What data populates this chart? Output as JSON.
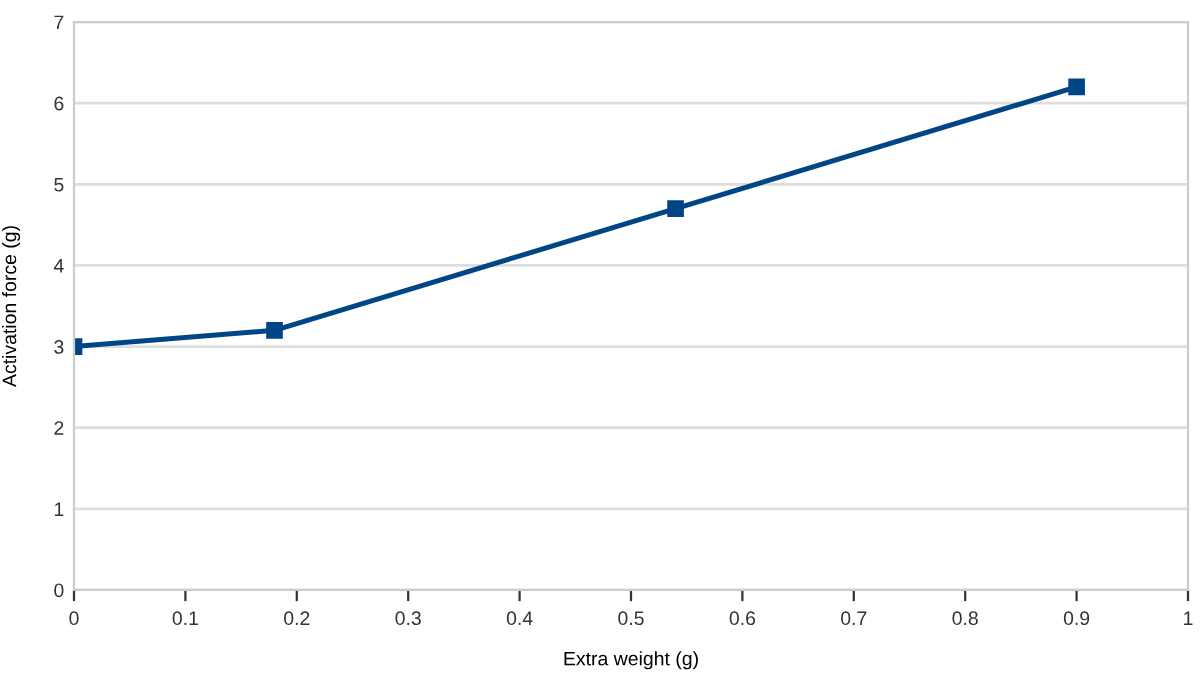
{
  "chart_data": {
    "type": "line",
    "xlabel": "Extra weight (g)",
    "ylabel": "Activation force (g)",
    "x": [
      0,
      0.18,
      0.54,
      0.9
    ],
    "series": [
      {
        "color": "#004586",
        "values": [
          3,
          3.2,
          4.7,
          6.2
        ]
      }
    ],
    "xlim": [
      0,
      1
    ],
    "xticks": [
      0,
      0.1,
      0.2,
      0.3,
      0.4,
      0.5,
      0.6,
      0.7,
      0.8,
      0.9,
      1
    ],
    "ylim": [
      0,
      7
    ],
    "yticks": [
      0,
      1,
      2,
      3,
      4,
      5,
      6,
      7
    ],
    "grid": "y",
    "marker": "square",
    "line_style": "solid"
  }
}
